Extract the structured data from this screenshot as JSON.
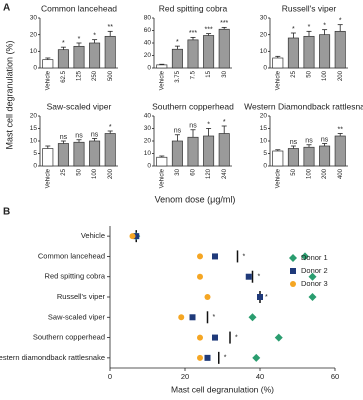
{
  "panel_labels": [
    "A",
    "B"
  ],
  "y_label": "Mast cell degranulation (%)",
  "x_label": "Venom dose (μg/ml)",
  "chart_data": [
    {
      "type": "bar",
      "title": "Common lancehead",
      "categories": [
        "Vehicle",
        "62.5",
        "125",
        "250",
        "500"
      ],
      "values": [
        5,
        11,
        13,
        15,
        19
      ],
      "errors": [
        1,
        1.5,
        2,
        2,
        3
      ],
      "significance": [
        null,
        "*",
        "*",
        "*",
        "**"
      ],
      "colors": [
        "#ffffff",
        "#9a9a9a",
        "#9a9a9a",
        "#9a9a9a",
        "#9a9a9a"
      ],
      "ylim": [
        0,
        30
      ],
      "yticks": [
        0,
        10,
        20,
        30
      ]
    },
    {
      "type": "bar",
      "title": "Red spitting cobra",
      "categories": [
        "Vehicle",
        "3.75",
        "7.5",
        "15",
        "30"
      ],
      "values": [
        5,
        30,
        45,
        52,
        62
      ],
      "errors": [
        1,
        5,
        4,
        3,
        3
      ],
      "significance": [
        null,
        "*",
        "***",
        "***",
        "***"
      ],
      "colors": [
        "#ffffff",
        "#9a9a9a",
        "#9a9a9a",
        "#9a9a9a",
        "#9a9a9a"
      ],
      "ylim": [
        0,
        80
      ],
      "yticks": [
        0,
        20,
        40,
        60,
        80
      ]
    },
    {
      "type": "bar",
      "title": "Russell's viper",
      "categories": [
        "Vehicle",
        "25",
        "50",
        "100",
        "200"
      ],
      "values": [
        6,
        18,
        19,
        20,
        22
      ],
      "errors": [
        1,
        3,
        3,
        3,
        4
      ],
      "significance": [
        null,
        "*",
        "*",
        "*",
        "*"
      ],
      "colors": [
        "#ffffff",
        "#9a9a9a",
        "#9a9a9a",
        "#9a9a9a",
        "#9a9a9a"
      ],
      "ylim": [
        0,
        30
      ],
      "yticks": [
        0,
        10,
        20,
        30
      ]
    },
    {
      "type": "bar",
      "title": "Saw-scaled viper",
      "categories": [
        "Vehicle",
        "25",
        "50",
        "100",
        "200"
      ],
      "values": [
        7,
        9,
        9.5,
        10,
        13
      ],
      "errors": [
        1,
        1,
        1,
        1,
        1
      ],
      "significance": [
        null,
        "ns",
        "ns",
        "ns",
        "*"
      ],
      "colors": [
        "#ffffff",
        "#9a9a9a",
        "#9a9a9a",
        "#9a9a9a",
        "#9a9a9a"
      ],
      "ylim": [
        0,
        20
      ],
      "yticks": [
        0,
        5,
        10,
        15,
        20
      ]
    },
    {
      "type": "bar",
      "title": "Southern copperhead",
      "categories": [
        "Vehicle",
        "30",
        "60",
        "120",
        "240"
      ],
      "values": [
        7,
        20,
        23,
        24,
        26
      ],
      "errors": [
        1,
        5,
        6,
        6,
        6
      ],
      "significance": [
        null,
        "ns",
        "ns",
        "*",
        "*"
      ],
      "colors": [
        "#ffffff",
        "#9a9a9a",
        "#9a9a9a",
        "#9a9a9a",
        "#9a9a9a"
      ],
      "ylim": [
        0,
        40
      ],
      "yticks": [
        0,
        10,
        20,
        30,
        40
      ]
    },
    {
      "type": "bar",
      "title": "Western Diamondback rattlesnake",
      "categories": [
        "Vehicle",
        "50",
        "100",
        "200",
        "400"
      ],
      "values": [
        6,
        7,
        7.5,
        8,
        12
      ],
      "errors": [
        0.5,
        1,
        1,
        1,
        1
      ],
      "significance": [
        null,
        "ns",
        "ns",
        "ns",
        "**"
      ],
      "colors": [
        "#ffffff",
        "#9a9a9a",
        "#9a9a9a",
        "#9a9a9a",
        "#9a9a9a"
      ],
      "ylim": [
        0,
        20
      ],
      "yticks": [
        0,
        5,
        10,
        15,
        20
      ]
    },
    {
      "type": "dot",
      "x_label": "Mast cell degranulation   (%)",
      "categories": [
        "Vehicle",
        "Common lancehead",
        "Red spitting cobra",
        "Russell's viper",
        "Saw-scaled viper",
        "Southern copperhead",
        "Western diamondback rattlesnake"
      ],
      "series": [
        {
          "name": "Donor 1",
          "color": "#2a9d6f",
          "marker": "diamond",
          "values": [
            7,
            52,
            54,
            54,
            38,
            45,
            39
          ]
        },
        {
          "name": "Donor 2",
          "color": "#1f3a7a",
          "marker": "square",
          "values": [
            7,
            28,
            37,
            40,
            22,
            28,
            26
          ]
        },
        {
          "name": "Donor 3",
          "color": "#f5a623",
          "marker": "circle",
          "values": [
            6,
            24,
            24,
            26,
            19,
            24,
            24
          ]
        }
      ],
      "means": [
        7,
        34,
        38,
        40,
        26,
        32,
        29
      ],
      "significance": [
        null,
        "*",
        "*",
        "*",
        "*",
        "*",
        "*"
      ],
      "xlim": [
        0,
        60
      ],
      "xticks": [
        0,
        20,
        40,
        60
      ]
    }
  ]
}
